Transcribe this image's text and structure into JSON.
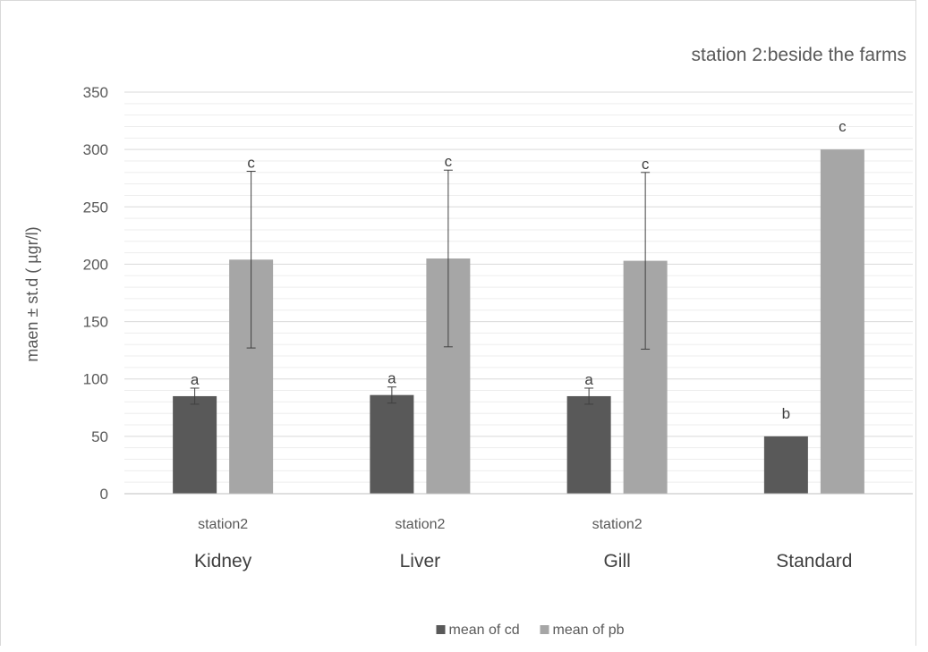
{
  "chart_data": {
    "type": "bar",
    "title": "station 2:beside the farms",
    "xlabel": "",
    "ylabel": "maen ± st.d ( µgr/l)",
    "ylim": [
      0,
      350
    ],
    "yticks": [
      0,
      50,
      100,
      150,
      200,
      250,
      300,
      350
    ],
    "grid": true,
    "legend_position": "bottom",
    "categories": [
      "Kidney",
      "Liver",
      "Gill",
      "Standard"
    ],
    "category_sublabels": [
      "station2",
      "station2",
      "station2",
      ""
    ],
    "series": [
      {
        "name": "mean of cd",
        "color": "#595959",
        "values": [
          85,
          86,
          85,
          50
        ],
        "errors": [
          7,
          7,
          7,
          null
        ],
        "labels": [
          "a",
          "a",
          "a",
          "b"
        ]
      },
      {
        "name": "mean of pb",
        "color": "#a6a6a6",
        "values": [
          204,
          205,
          203,
          300
        ],
        "errors": [
          77,
          77,
          77,
          null
        ],
        "labels": [
          "c",
          "c",
          "c",
          "c"
        ]
      }
    ]
  }
}
